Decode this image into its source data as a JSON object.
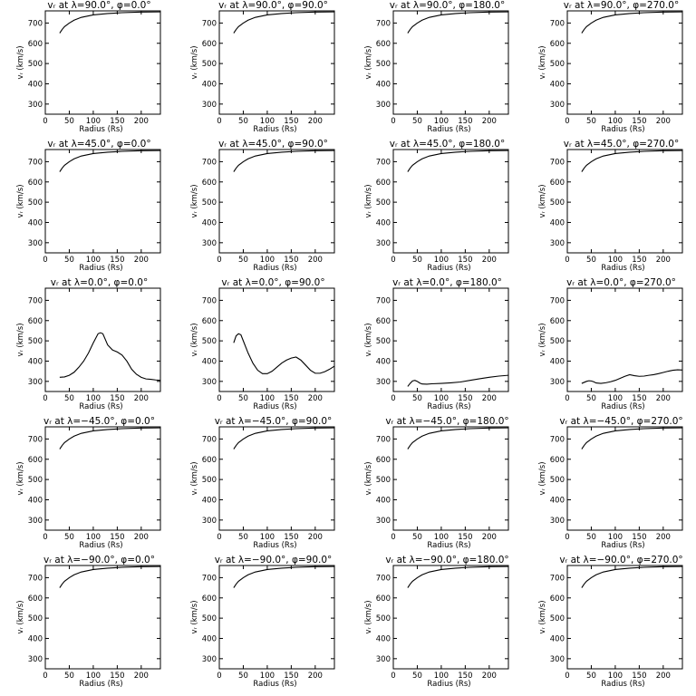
{
  "figure": {
    "xlabel": "Radius (Rs)",
    "ylabel": "vᵣ (km/s)"
  },
  "chart_data": [
    {
      "type": "line",
      "title": "vᵣ at λ=90.0°, φ=0.0°",
      "xlabel": "Radius (Rs)",
      "ylabel": "vᵣ (km/s)",
      "xlim": [
        0,
        240
      ],
      "ylim": [
        250,
        760
      ],
      "xticks": [
        0,
        50,
        100,
        150,
        200
      ],
      "yticks": [
        300,
        400,
        500,
        600,
        700
      ],
      "x": [
        30,
        35,
        40,
        50,
        60,
        75,
        100,
        130,
        160,
        200,
        240
      ],
      "y": [
        650,
        668,
        682,
        700,
        714,
        728,
        740,
        747,
        751,
        754,
        755
      ]
    },
    {
      "type": "line",
      "title": "vᵣ at λ=90.0°, φ=90.0°",
      "xlabel": "Radius (Rs)",
      "ylabel": "vᵣ (km/s)",
      "xlim": [
        0,
        240
      ],
      "ylim": [
        250,
        760
      ],
      "xticks": [
        0,
        50,
        100,
        150,
        200
      ],
      "yticks": [
        300,
        400,
        500,
        600,
        700
      ],
      "x": [
        30,
        35,
        40,
        50,
        60,
        75,
        100,
        130,
        160,
        200,
        240
      ],
      "y": [
        650,
        668,
        682,
        700,
        714,
        728,
        740,
        747,
        751,
        754,
        755
      ]
    },
    {
      "type": "line",
      "title": "vᵣ at λ=90.0°, φ=180.0°",
      "xlabel": "Radius (Rs)",
      "ylabel": "vᵣ (km/s)",
      "xlim": [
        0,
        240
      ],
      "ylim": [
        250,
        760
      ],
      "xticks": [
        0,
        50,
        100,
        150,
        200
      ],
      "yticks": [
        300,
        400,
        500,
        600,
        700
      ],
      "x": [
        30,
        35,
        40,
        50,
        60,
        75,
        100,
        130,
        160,
        200,
        240
      ],
      "y": [
        650,
        668,
        682,
        700,
        714,
        728,
        740,
        747,
        751,
        754,
        755
      ]
    },
    {
      "type": "line",
      "title": "vᵣ at λ=90.0°, φ=270.0°",
      "xlabel": "Radius (Rs)",
      "ylabel": "vᵣ (km/s)",
      "xlim": [
        0,
        240
      ],
      "ylim": [
        250,
        760
      ],
      "xticks": [
        0,
        50,
        100,
        150,
        200
      ],
      "yticks": [
        300,
        400,
        500,
        600,
        700
      ],
      "x": [
        30,
        35,
        40,
        50,
        60,
        75,
        100,
        130,
        160,
        200,
        240
      ],
      "y": [
        650,
        668,
        682,
        700,
        714,
        728,
        740,
        747,
        751,
        754,
        755
      ]
    },
    {
      "type": "line",
      "title": "vᵣ at λ=45.0°, φ=0.0°",
      "xlabel": "Radius (Rs)",
      "ylabel": "vᵣ (km/s)",
      "xlim": [
        0,
        240
      ],
      "ylim": [
        250,
        760
      ],
      "xticks": [
        0,
        50,
        100,
        150,
        200
      ],
      "yticks": [
        300,
        400,
        500,
        600,
        700
      ],
      "x": [
        30,
        35,
        40,
        50,
        60,
        75,
        100,
        130,
        160,
        200,
        240
      ],
      "y": [
        650,
        668,
        682,
        700,
        714,
        728,
        740,
        747,
        751,
        754,
        755
      ]
    },
    {
      "type": "line",
      "title": "vᵣ at λ=45.0°, φ=90.0°",
      "xlabel": "Radius (Rs)",
      "ylabel": "vᵣ (km/s)",
      "xlim": [
        0,
        240
      ],
      "ylim": [
        250,
        760
      ],
      "xticks": [
        0,
        50,
        100,
        150,
        200
      ],
      "yticks": [
        300,
        400,
        500,
        600,
        700
      ],
      "x": [
        30,
        35,
        40,
        50,
        60,
        75,
        100,
        130,
        160,
        200,
        240
      ],
      "y": [
        650,
        668,
        682,
        700,
        714,
        728,
        740,
        747,
        751,
        754,
        755
      ]
    },
    {
      "type": "line",
      "title": "vᵣ at λ=45.0°, φ=180.0°",
      "xlabel": "Radius (Rs)",
      "ylabel": "vᵣ (km/s)",
      "xlim": [
        0,
        240
      ],
      "ylim": [
        250,
        760
      ],
      "xticks": [
        0,
        50,
        100,
        150,
        200
      ],
      "yticks": [
        300,
        400,
        500,
        600,
        700
      ],
      "x": [
        30,
        35,
        40,
        50,
        60,
        75,
        100,
        130,
        160,
        200,
        240
      ],
      "y": [
        650,
        668,
        682,
        700,
        714,
        728,
        740,
        747,
        751,
        754,
        755
      ]
    },
    {
      "type": "line",
      "title": "vᵣ at λ=45.0°, φ=270.0°",
      "xlabel": "Radius (Rs)",
      "ylabel": "vᵣ (km/s)",
      "xlim": [
        0,
        240
      ],
      "ylim": [
        250,
        760
      ],
      "xticks": [
        0,
        50,
        100,
        150,
        200
      ],
      "yticks": [
        300,
        400,
        500,
        600,
        700
      ],
      "x": [
        30,
        35,
        40,
        50,
        60,
        75,
        100,
        130,
        160,
        200,
        240
      ],
      "y": [
        650,
        668,
        682,
        700,
        714,
        728,
        740,
        747,
        751,
        754,
        755
      ]
    },
    {
      "type": "line",
      "title": "vᵣ at λ=0.0°, φ=0.0°",
      "xlabel": "Radius (Rs)",
      "ylabel": "vᵣ (km/s)",
      "xlim": [
        0,
        240
      ],
      "ylim": [
        250,
        760
      ],
      "xticks": [
        0,
        50,
        100,
        150,
        200
      ],
      "yticks": [
        300,
        400,
        500,
        600,
        700
      ],
      "x": [
        30,
        40,
        50,
        60,
        70,
        80,
        90,
        100,
        110,
        115,
        120,
        130,
        140,
        150,
        160,
        170,
        180,
        190,
        200,
        210,
        220,
        230,
        240
      ],
      "y": [
        320,
        322,
        330,
        345,
        370,
        400,
        440,
        490,
        535,
        540,
        535,
        480,
        455,
        445,
        430,
        400,
        360,
        335,
        320,
        312,
        310,
        307,
        305
      ]
    },
    {
      "type": "line",
      "title": "vᵣ at λ=0.0°, φ=90.0°",
      "xlabel": "Radius (Rs)",
      "ylabel": "vᵣ (km/s)",
      "xlim": [
        0,
        240
      ],
      "ylim": [
        250,
        760
      ],
      "xticks": [
        0,
        50,
        100,
        150,
        200
      ],
      "yticks": [
        300,
        400,
        500,
        600,
        700
      ],
      "x": [
        30,
        35,
        40,
        45,
        50,
        60,
        70,
        80,
        90,
        100,
        110,
        120,
        130,
        140,
        150,
        160,
        170,
        180,
        190,
        200,
        210,
        220,
        230,
        240
      ],
      "y": [
        490,
        525,
        535,
        530,
        500,
        440,
        390,
        355,
        338,
        338,
        350,
        370,
        390,
        405,
        415,
        420,
        405,
        380,
        355,
        340,
        340,
        348,
        360,
        375
      ]
    },
    {
      "type": "line",
      "title": "vᵣ at λ=0.0°, φ=180.0°",
      "xlabel": "Radius (Rs)",
      "ylabel": "vᵣ (km/s)",
      "xlim": [
        0,
        240
      ],
      "ylim": [
        250,
        760
      ],
      "xticks": [
        0,
        50,
        100,
        150,
        200
      ],
      "yticks": [
        300,
        400,
        500,
        600,
        700
      ],
      "x": [
        30,
        35,
        40,
        45,
        50,
        55,
        60,
        70,
        80,
        100,
        120,
        140,
        160,
        180,
        200,
        220,
        240
      ],
      "y": [
        275,
        290,
        302,
        305,
        300,
        292,
        287,
        286,
        288,
        290,
        293,
        297,
        305,
        313,
        320,
        326,
        330
      ]
    },
    {
      "type": "line",
      "title": "vᵣ at λ=0.0°, φ=270.0°",
      "xlabel": "Radius (Rs)",
      "ylabel": "vᵣ (km/s)",
      "xlim": [
        0,
        240
      ],
      "ylim": [
        250,
        760
      ],
      "xticks": [
        0,
        50,
        100,
        150,
        200
      ],
      "yticks": [
        300,
        400,
        500,
        600,
        700
      ],
      "x": [
        30,
        35,
        40,
        45,
        50,
        55,
        60,
        70,
        80,
        90,
        100,
        110,
        120,
        130,
        140,
        150,
        160,
        170,
        180,
        190,
        200,
        210,
        220,
        230,
        240
      ],
      "y": [
        290,
        295,
        300,
        303,
        302,
        298,
        292,
        290,
        293,
        298,
        305,
        315,
        325,
        333,
        328,
        325,
        326,
        330,
        333,
        338,
        344,
        350,
        355,
        357,
        356
      ]
    },
    {
      "type": "line",
      "title": "vᵣ at λ=−45.0°, φ=0.0°",
      "xlabel": "Radius (Rs)",
      "ylabel": "vᵣ (km/s)",
      "xlim": [
        0,
        240
      ],
      "ylim": [
        250,
        760
      ],
      "xticks": [
        0,
        50,
        100,
        150,
        200
      ],
      "yticks": [
        300,
        400,
        500,
        600,
        700
      ],
      "x": [
        30,
        35,
        40,
        50,
        60,
        75,
        100,
        130,
        160,
        200,
        240
      ],
      "y": [
        650,
        668,
        682,
        700,
        714,
        728,
        740,
        747,
        751,
        754,
        755
      ]
    },
    {
      "type": "line",
      "title": "vᵣ at λ=−45.0°, φ=90.0°",
      "xlabel": "Radius (Rs)",
      "ylabel": "vᵣ (km/s)",
      "xlim": [
        0,
        240
      ],
      "ylim": [
        250,
        760
      ],
      "xticks": [
        0,
        50,
        100,
        150,
        200
      ],
      "yticks": [
        300,
        400,
        500,
        600,
        700
      ],
      "x": [
        30,
        35,
        40,
        50,
        60,
        75,
        100,
        130,
        160,
        200,
        240
      ],
      "y": [
        650,
        668,
        682,
        700,
        714,
        728,
        740,
        747,
        751,
        754,
        755
      ]
    },
    {
      "type": "line",
      "title": "vᵣ at λ=−45.0°, φ=180.0°",
      "xlabel": "Radius (Rs)",
      "ylabel": "vᵣ (km/s)",
      "xlim": [
        0,
        240
      ],
      "ylim": [
        250,
        760
      ],
      "xticks": [
        0,
        50,
        100,
        150,
        200
      ],
      "yticks": [
        300,
        400,
        500,
        600,
        700
      ],
      "x": [
        30,
        35,
        40,
        50,
        60,
        75,
        100,
        130,
        160,
        200,
        240
      ],
      "y": [
        650,
        668,
        682,
        700,
        714,
        728,
        740,
        747,
        751,
        754,
        755
      ]
    },
    {
      "type": "line",
      "title": "vᵣ at λ=−45.0°, φ=270.0°",
      "xlabel": "Radius (Rs)",
      "ylabel": "vᵣ (km/s)",
      "xlim": [
        0,
        240
      ],
      "ylim": [
        250,
        760
      ],
      "xticks": [
        0,
        50,
        100,
        150,
        200
      ],
      "yticks": [
        300,
        400,
        500,
        600,
        700
      ],
      "x": [
        30,
        35,
        40,
        50,
        60,
        75,
        100,
        130,
        160,
        200,
        240
      ],
      "y": [
        650,
        668,
        682,
        700,
        714,
        728,
        740,
        747,
        751,
        754,
        755
      ]
    },
    {
      "type": "line",
      "title": "vᵣ at λ=−90.0°, φ=0.0°",
      "xlabel": "Radius (Rs)",
      "ylabel": "vᵣ (km/s)",
      "xlim": [
        0,
        240
      ],
      "ylim": [
        250,
        760
      ],
      "xticks": [
        0,
        50,
        100,
        150,
        200
      ],
      "yticks": [
        300,
        400,
        500,
        600,
        700
      ],
      "x": [
        30,
        35,
        40,
        50,
        60,
        75,
        100,
        130,
        160,
        200,
        240
      ],
      "y": [
        650,
        668,
        682,
        700,
        714,
        728,
        740,
        747,
        751,
        754,
        755
      ]
    },
    {
      "type": "line",
      "title": "vᵣ at λ=−90.0°, φ=90.0°",
      "xlabel": "Radius (Rs)",
      "ylabel": "vᵣ (km/s)",
      "xlim": [
        0,
        240
      ],
      "ylim": [
        250,
        760
      ],
      "xticks": [
        0,
        50,
        100,
        150,
        200
      ],
      "yticks": [
        300,
        400,
        500,
        600,
        700
      ],
      "x": [
        30,
        35,
        40,
        50,
        60,
        75,
        100,
        130,
        160,
        200,
        240
      ],
      "y": [
        650,
        668,
        682,
        700,
        714,
        728,
        740,
        747,
        751,
        754,
        755
      ]
    },
    {
      "type": "line",
      "title": "vᵣ at λ=−90.0°, φ=180.0°",
      "xlabel": "Radius (Rs)",
      "ylabel": "vᵣ (km/s)",
      "xlim": [
        0,
        240
      ],
      "ylim": [
        250,
        760
      ],
      "xticks": [
        0,
        50,
        100,
        150,
        200
      ],
      "yticks": [
        300,
        400,
        500,
        600,
        700
      ],
      "x": [
        30,
        35,
        40,
        50,
        60,
        75,
        100,
        130,
        160,
        200,
        240
      ],
      "y": [
        650,
        668,
        682,
        700,
        714,
        728,
        740,
        747,
        751,
        754,
        755
      ]
    },
    {
      "type": "line",
      "title": "vᵣ at λ=−90.0°, φ=270.0°",
      "xlabel": "Radius (Rs)",
      "ylabel": "vᵣ (km/s)",
      "xlim": [
        0,
        240
      ],
      "ylim": [
        250,
        760
      ],
      "xticks": [
        0,
        50,
        100,
        150,
        200
      ],
      "yticks": [
        300,
        400,
        500,
        600,
        700
      ],
      "x": [
        30,
        35,
        40,
        50,
        60,
        75,
        100,
        130,
        160,
        200,
        240
      ],
      "y": [
        650,
        668,
        682,
        700,
        714,
        728,
        740,
        747,
        751,
        754,
        755
      ]
    }
  ]
}
